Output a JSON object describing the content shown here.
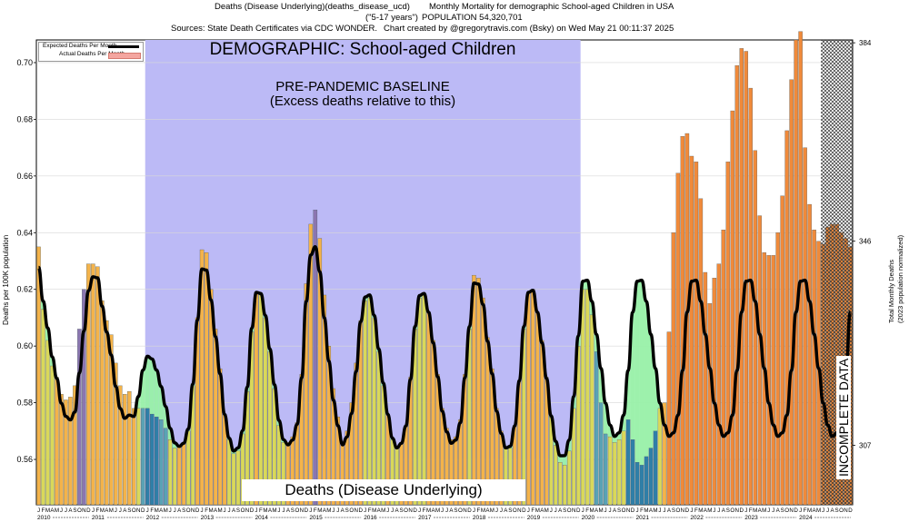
{
  "header": {
    "line1_left": "Deaths (Disease Underlying)(deaths_disease_ucd)",
    "line1_right": "Monthly Mortality for demographic School-aged Children in USA",
    "line2_left": "(\"5-17 years\")",
    "line2_right": "POPULATION 54,320,701",
    "line3_left": "Sources: State Death Certificates via CDC WONDER.",
    "line3_right": "Chart created by @gregorytravis.com (Bsky) on Wed May 21 00:11:37 2025"
  },
  "annotations": {
    "demographic": "DEMOGRAPHIC: School-aged Children",
    "baseline_line1": "PRE-PANDEMIC BASELINE",
    "baseline_line2": "(Excess deaths relative to this)",
    "footer": "Deaths (Disease Underlying)",
    "incomplete": "INCOMPLETE DATA"
  },
  "legend": {
    "expected": "Expected Deaths Per Month",
    "actual": "Actual Deaths Per Month"
  },
  "chart_data": {
    "type": "bar",
    "title": "Deaths (Disease Underlying) Monthly Mortality for demographic School-aged Children in USA",
    "ylabel": "Deaths per 100K population",
    "y2label_line1": "Total Monthly Deaths",
    "y2label_line2": "(2023 population normalized)",
    "ylim": [
      0.544,
      0.708
    ],
    "yticks": [
      "0.56",
      "0.58",
      "0.60",
      "0.62",
      "0.64",
      "0.66",
      "0.68",
      "0.70"
    ],
    "y2ticks": [
      {
        "label": "307",
        "value": 0.565
      },
      {
        "label": "346",
        "value": 0.637
      },
      {
        "label": "384",
        "value": 0.707
      }
    ],
    "start": "2010-01",
    "month_initials": [
      "J",
      "F",
      "M",
      "A",
      "M",
      "J",
      "J",
      "A",
      "S",
      "O",
      "N",
      "D"
    ],
    "years": [
      "2010",
      "2011",
      "2012",
      "2013",
      "2014",
      "2015",
      "2016",
      "2017",
      "2018",
      "2019",
      "2020",
      "2021",
      "2022",
      "2023",
      "2024"
    ],
    "baseline_period": [
      "2012-01",
      "2019-12"
    ],
    "incomplete_from": "2024-06",
    "series": [
      {
        "name": "Actual Deaths Per Month",
        "values": [
          0.635,
          0.613,
          0.602,
          0.593,
          0.589,
          0.583,
          0.581,
          0.582,
          0.586,
          0.606,
          0.62,
          0.629,
          0.629,
          0.628,
          0.616,
          0.609,
          0.604,
          0.594,
          0.586,
          0.583,
          0.584,
          0.578,
          0.578,
          0.578,
          0.578,
          0.576,
          0.575,
          0.574,
          0.571,
          0.567,
          0.564,
          0.565,
          0.566,
          0.57,
          0.586,
          0.61,
          0.634,
          0.633,
          0.62,
          0.606,
          0.592,
          0.576,
          0.567,
          0.562,
          0.563,
          0.569,
          0.584,
          0.605,
          0.619,
          0.618,
          0.61,
          0.598,
          0.585,
          0.572,
          0.566,
          0.566,
          0.568,
          0.573,
          0.59,
          0.622,
          0.643,
          0.648,
          0.638,
          0.618,
          0.6,
          0.585,
          0.575,
          0.566,
          0.57,
          0.58,
          0.594,
          0.609,
          0.616,
          0.617,
          0.61,
          0.598,
          0.586,
          0.576,
          0.567,
          0.564,
          0.566,
          0.572,
          0.589,
          0.606,
          0.617,
          0.618,
          0.612,
          0.602,
          0.59,
          0.578,
          0.571,
          0.567,
          0.568,
          0.574,
          0.59,
          0.606,
          0.625,
          0.624,
          0.617,
          0.603,
          0.592,
          0.578,
          0.57,
          0.564,
          0.564,
          0.572,
          0.588,
          0.606,
          0.619,
          0.62,
          0.612,
          0.602,
          0.589,
          0.575,
          0.565,
          0.559,
          0.558,
          0.563,
          0.578,
          0.6,
          0.62,
          0.62,
          0.611,
          0.598,
          0.58,
          0.569,
          0.568,
          0.566,
          0.567,
          0.57,
          0.574,
          0.567,
          0.559,
          0.558,
          0.561,
          0.564,
          0.57,
          0.578,
          0.58,
          0.605,
          0.64,
          0.661,
          0.674,
          0.675,
          0.667,
          0.665,
          0.652,
          0.626,
          0.615,
          0.624,
          0.629,
          0.641,
          0.665,
          0.683,
          0.699,
          0.705,
          0.704,
          0.691,
          0.669,
          0.646,
          0.633,
          0.632,
          0.632,
          0.64,
          0.653,
          0.676,
          0.694,
          0.708,
          0.711,
          0.67,
          0.65,
          0.641,
          0.637,
          0.636,
          0.642,
          0.643,
          0.643,
          0.64,
          0.638,
          0.635
        ]
      }
    ]
  }
}
